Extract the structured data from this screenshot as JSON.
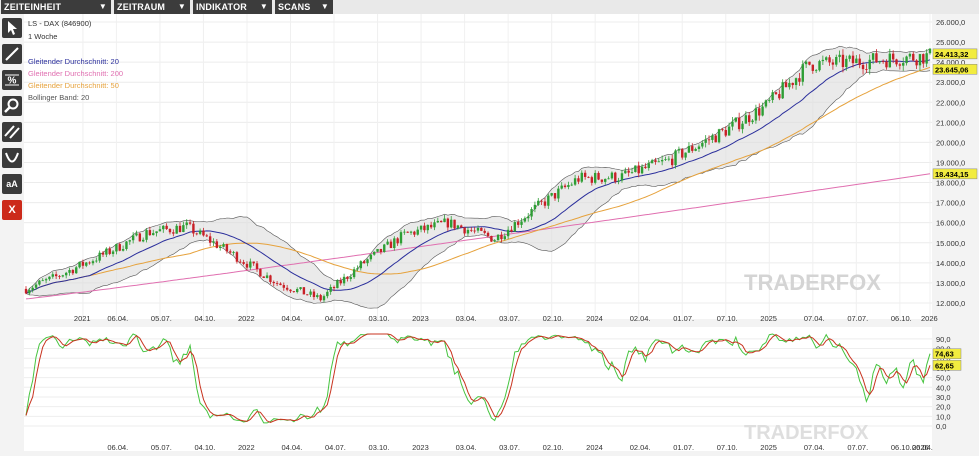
{
  "menu": [
    {
      "label": "ZEITEINHEIT"
    },
    {
      "label": "ZEITRAUM"
    },
    {
      "label": "INDIKATOR"
    },
    {
      "label": "SCANS"
    }
  ],
  "tools": [
    {
      "icon": "cursor-icon"
    },
    {
      "icon": "line-icon"
    },
    {
      "icon": "percent-icon"
    },
    {
      "icon": "zoom-icon"
    },
    {
      "icon": "parallel-lines-icon"
    },
    {
      "icon": "curve-icon"
    },
    {
      "label": "aA",
      "icon": "text-icon"
    },
    {
      "label": "X",
      "icon": "delete-icon"
    }
  ],
  "legend": {
    "instrument": "LS - DAX (846900)",
    "period": "1 Woche",
    "items": [
      {
        "label": "Gleitender Durchschnitt: 20",
        "color": "#2b2f9c"
      },
      {
        "label": "Gleitender Durchschnitt: 200",
        "color": "#e06fb0"
      },
      {
        "label": "Gleitender Durchschnitt: 50",
        "color": "#e6a23c"
      },
      {
        "label": "Bollinger Band: 20",
        "color": "#555555"
      }
    ]
  },
  "watermark": "TRADERFOX",
  "colors": {
    "up_candle": "#2e9e35",
    "down_candle": "#c82027",
    "band_fill": "#dcdcdc",
    "stoch_k": "#46c43f",
    "stoch_d": "#c8331f"
  },
  "chart_data": [
    {
      "type": "line",
      "subtype": "candlestick",
      "title": "LS - DAX (846900)",
      "timeframe": "1 Woche",
      "x_ticks": [
        "2021",
        "06.04.",
        "05.07.",
        "04.10.",
        "2022",
        "04.04.",
        "04.07.",
        "03.10.",
        "2023",
        "03.04.",
        "03.07.",
        "02.10.",
        "2024",
        "02.04.",
        "01.07.",
        "07.10.",
        "2025",
        "07.04.",
        "07.07.",
        "06.10.",
        "2026"
      ],
      "y_ticks": [
        "26.000,0",
        "25.000,0",
        "24.000,0",
        "23.000,0",
        "22.000,0",
        "21.000,0",
        "20.000,0",
        "19.000,0",
        "18.000,0",
        "17.000,0",
        "16.000,0",
        "15.000,0",
        "14.000,0",
        "13.000,0",
        "12.000,0"
      ],
      "ylim": [
        11300,
        26200
      ],
      "price_labels": [
        {
          "text": "24.413,32",
          "value": 24413
        },
        {
          "text": "23.645,06",
          "value": 23645
        },
        {
          "text": "18.434,15",
          "value": 18434
        }
      ],
      "anchors": {
        "x_index": [
          0,
          9,
          23,
          36,
          48,
          62,
          75,
          88,
          100,
          113,
          126,
          140,
          152,
          165,
          178,
          192,
          208,
          221,
          234,
          247,
          260,
          270
        ],
        "close": [
          12700,
          13300,
          14400,
          15500,
          15800,
          14400,
          13000,
          12200,
          13900,
          15400,
          16000,
          15200,
          16700,
          18200,
          18300,
          19100,
          20500,
          21800,
          23900,
          24000,
          24200,
          24300
        ]
      },
      "series": [
        {
          "name": "Gleitender Durchschnitt: 20",
          "window": 20
        },
        {
          "name": "Gleitender Durchschnitt: 50",
          "window": 50
        },
        {
          "name": "Gleitender Durchschnitt: 200",
          "window": 200
        },
        {
          "name": "Bollinger Band: 20",
          "window": 20,
          "stddev": 2
        }
      ]
    },
    {
      "type": "line",
      "subtype": "stochastic",
      "x_ticks": [
        "06.04.",
        "05.07.",
        "04.10.",
        "2022",
        "04.04.",
        "04.07.",
        "03.10.",
        "2023",
        "03.04.",
        "03.07.",
        "02.10.",
        "2024",
        "02.04.",
        "01.07.",
        "07.10.",
        "2025",
        "07.04.",
        "07.07.",
        "06.10.",
        "2026",
        "06.04."
      ],
      "y_ticks": [
        "90,0",
        "80,0",
        "70,0",
        "60,0",
        "50,0",
        "40,0",
        "30,0",
        "20,0",
        "10,0",
        "0,0"
      ],
      "ylim": [
        0,
        95
      ],
      "last_values": [
        {
          "text": "74,63",
          "value": 74.63
        },
        {
          "text": "62,65",
          "value": 62.65
        }
      ]
    }
  ]
}
